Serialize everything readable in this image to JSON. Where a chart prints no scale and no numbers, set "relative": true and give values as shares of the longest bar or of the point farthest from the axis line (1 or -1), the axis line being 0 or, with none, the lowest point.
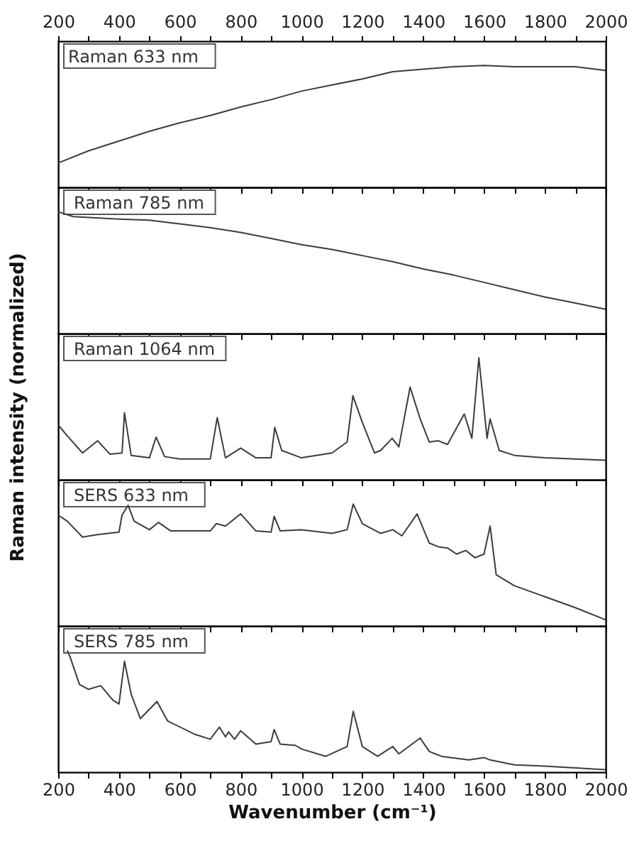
{
  "chart_data": [
    {
      "type": "line",
      "title": "Raman 633 nm",
      "relative": true,
      "xlim": [
        200,
        2000
      ],
      "x2lim": [
        200,
        2000
      ],
      "x2ticks": [
        200,
        {
          "value": 300,
          "label": null
        },
        400,
        {
          "value": 500,
          "label": null
        },
        600,
        {
          "value": 700,
          "label": null
        },
        800,
        {
          "value": 900,
          "label": null
        },
        1000,
        {
          "value": 1100,
          "label": null
        },
        1200,
        {
          "value": 1300,
          "label": null
        },
        1400,
        {
          "value": 1500,
          "label": null
        },
        1600,
        {
          "value": 1700,
          "label": null
        },
        1800,
        {
          "value": 1900,
          "label": null
        },
        2000
      ],
      "xticks": [
        {
          "value": 200,
          "label": null
        },
        {
          "value": 300,
          "label": null
        },
        {
          "value": 400,
          "label": null
        },
        {
          "value": 500,
          "label": null
        },
        {
          "value": 600,
          "label": null
        },
        {
          "value": 700,
          "label": null
        },
        {
          "value": 800,
          "label": null
        },
        {
          "value": 900,
          "label": null
        },
        {
          "value": 1000,
          "label": null
        },
        {
          "value": 1100,
          "label": null
        },
        {
          "value": 1200,
          "label": null
        },
        {
          "value": 1300,
          "label": null
        },
        {
          "value": 1400,
          "label": null
        },
        {
          "value": 1500,
          "label": null
        },
        {
          "value": 1600,
          "label": null
        },
        {
          "value": 1700,
          "label": null
        },
        {
          "value": 1800,
          "label": null
        },
        {
          "value": 1900,
          "label": null
        },
        {
          "value": 2000,
          "label": null
        }
      ],
      "tick_labels": false,
      "x": [
        200,
        300,
        400,
        500,
        600,
        700,
        800,
        900,
        1000,
        1100,
        1200,
        1300,
        1400,
        1500,
        1600,
        1700,
        1800,
        1900,
        2000
      ],
      "series": [
        {
          "color": "#3c3c3c",
          "values": [
            0.2,
            0.3,
            0.38,
            0.46,
            0.53,
            0.59,
            0.66,
            0.72,
            0.79,
            0.84,
            0.89,
            0.95,
            0.97,
            0.99,
            1.0,
            0.99,
            0.99,
            0.99,
            0.96
          ]
        }
      ]
    },
    {
      "type": "line",
      "title": "Raman 785 nm",
      "relative": true,
      "xlim": [
        200,
        2000
      ],
      "xticks": [
        {
          "value": 200,
          "label": null
        },
        {
          "value": 300,
          "label": null
        },
        {
          "value": 400,
          "label": null
        },
        {
          "value": 500,
          "label": null
        },
        {
          "value": 600,
          "label": null
        },
        {
          "value": 700,
          "label": null
        },
        {
          "value": 800,
          "label": null
        },
        {
          "value": 900,
          "label": null
        },
        {
          "value": 1000,
          "label": null
        },
        {
          "value": 1100,
          "label": null
        },
        {
          "value": 1200,
          "label": null
        },
        {
          "value": 1300,
          "label": null
        },
        {
          "value": 1400,
          "label": null
        },
        {
          "value": 1500,
          "label": null
        },
        {
          "value": 1600,
          "label": null
        },
        {
          "value": 1700,
          "label": null
        },
        {
          "value": 1800,
          "label": null
        },
        {
          "value": 1900,
          "label": null
        },
        {
          "value": 2000,
          "label": null
        }
      ],
      "tick_labels": false,
      "x": [
        200,
        250,
        400,
        500,
        600,
        700,
        800,
        900,
        1000,
        1100,
        1200,
        1300,
        1400,
        1500,
        1600,
        1700,
        1800,
        1900,
        2000
      ],
      "series": [
        {
          "color": "#3c3c3c",
          "values": [
            1.0,
            0.96,
            0.94,
            0.93,
            0.9,
            0.87,
            0.83,
            0.78,
            0.73,
            0.69,
            0.64,
            0.59,
            0.53,
            0.48,
            0.42,
            0.36,
            0.3,
            0.25,
            0.2
          ]
        }
      ]
    },
    {
      "type": "line",
      "title": "Raman 1064 nm",
      "ylabel": "Raman intensity (normalized)",
      "relative": true,
      "xlim": [
        200,
        2000
      ],
      "xticks": [
        {
          "value": 200,
          "label": null
        },
        {
          "value": 300,
          "label": null
        },
        {
          "value": 400,
          "label": null
        },
        {
          "value": 500,
          "label": null
        },
        {
          "value": 600,
          "label": null
        },
        {
          "value": 700,
          "label": null
        },
        {
          "value": 800,
          "label": null
        },
        {
          "value": 900,
          "label": null
        },
        {
          "value": 1000,
          "label": null
        },
        {
          "value": 1100,
          "label": null
        },
        {
          "value": 1200,
          "label": null
        },
        {
          "value": 1300,
          "label": null
        },
        {
          "value": 1400,
          "label": null
        },
        {
          "value": 1500,
          "label": null
        },
        {
          "value": 1600,
          "label": null
        },
        {
          "value": 1700,
          "label": null
        },
        {
          "value": 1800,
          "label": null
        },
        {
          "value": 1900,
          "label": null
        },
        {
          "value": 2000,
          "label": null
        }
      ],
      "tick_labels": false,
      "x": [
        200,
        230,
        280,
        330,
        370,
        410,
        418,
        440,
        500,
        522,
        550,
        600,
        700,
        723,
        750,
        800,
        850,
        900,
        912,
        935,
        1000,
        1100,
        1150,
        1169,
        1200,
        1240,
        1260,
        1298,
        1320,
        1357,
        1390,
        1420,
        1450,
        1480,
        1535,
        1560,
        1583,
        1610,
        1620,
        1650,
        1700,
        1800,
        2000
      ],
      "series": [
        {
          "color": "#3c3c3c",
          "values": [
            0.45,
            0.36,
            0.22,
            0.32,
            0.21,
            0.22,
            0.55,
            0.2,
            0.18,
            0.35,
            0.19,
            0.17,
            0.17,
            0.51,
            0.18,
            0.26,
            0.18,
            0.18,
            0.43,
            0.24,
            0.18,
            0.22,
            0.31,
            0.69,
            0.47,
            0.22,
            0.24,
            0.34,
            0.27,
            0.76,
            0.5,
            0.31,
            0.32,
            0.29,
            0.54,
            0.34,
            1.0,
            0.34,
            0.5,
            0.24,
            0.2,
            0.18,
            0.16
          ]
        }
      ]
    },
    {
      "type": "line",
      "title": "SERS 633 nm",
      "relative": true,
      "xlim": [
        200,
        2000
      ],
      "xticks": [
        {
          "value": 200,
          "label": null
        },
        {
          "value": 300,
          "label": null
        },
        {
          "value": 400,
          "label": null
        },
        {
          "value": 500,
          "label": null
        },
        {
          "value": 600,
          "label": null
        },
        {
          "value": 700,
          "label": null
        },
        {
          "value": 800,
          "label": null
        },
        {
          "value": 900,
          "label": null
        },
        {
          "value": 1000,
          "label": null
        },
        {
          "value": 1100,
          "label": null
        },
        {
          "value": 1200,
          "label": null
        },
        {
          "value": 1300,
          "label": null
        },
        {
          "value": 1400,
          "label": null
        },
        {
          "value": 1500,
          "label": null
        },
        {
          "value": 1600,
          "label": null
        },
        {
          "value": 1700,
          "label": null
        },
        {
          "value": 1800,
          "label": null
        },
        {
          "value": 1900,
          "label": null
        },
        {
          "value": 2000,
          "label": null
        }
      ],
      "tick_labels": false,
      "x": [
        200,
        230,
        280,
        330,
        400,
        410,
        430,
        450,
        500,
        530,
        570,
        700,
        720,
        750,
        800,
        850,
        900,
        910,
        930,
        1000,
        1100,
        1150,
        1170,
        1200,
        1260,
        1300,
        1330,
        1380,
        1420,
        1450,
        1480,
        1510,
        1540,
        1570,
        1600,
        1620,
        1640,
        1700,
        1800,
        1900,
        2000
      ],
      "series": [
        {
          "color": "#3c3c3c",
          "values": [
            0.91,
            0.86,
            0.73,
            0.75,
            0.77,
            0.91,
            0.99,
            0.86,
            0.79,
            0.85,
            0.78,
            0.78,
            0.84,
            0.82,
            0.92,
            0.78,
            0.77,
            0.9,
            0.78,
            0.79,
            0.76,
            0.79,
            1.0,
            0.84,
            0.76,
            0.79,
            0.74,
            0.92,
            0.68,
            0.65,
            0.64,
            0.59,
            0.62,
            0.56,
            0.59,
            0.82,
            0.42,
            0.33,
            0.24,
            0.15,
            0.05
          ]
        }
      ]
    },
    {
      "type": "line",
      "title": "SERS 785 nm",
      "xlabel": "Wavenumber (cm⁻¹)",
      "relative": true,
      "xlim": [
        200,
        2000
      ],
      "xticks": [
        200,
        {
          "value": 300,
          "label": null
        },
        400,
        {
          "value": 500,
          "label": null
        },
        600,
        {
          "value": 700,
          "label": null
        },
        800,
        {
          "value": 900,
          "label": null
        },
        1000,
        {
          "value": 1100,
          "label": null
        },
        1200,
        {
          "value": 1300,
          "label": null
        },
        1400,
        {
          "value": 1500,
          "label": null
        },
        1600,
        {
          "value": 1700,
          "label": null
        },
        1800,
        {
          "value": 1900,
          "label": null
        },
        2000
      ],
      "tick_labels": "x",
      "x": [
        230,
        240,
        270,
        300,
        340,
        380,
        400,
        418,
        440,
        470,
        525,
        560,
        650,
        700,
        730,
        750,
        760,
        780,
        800,
        850,
        900,
        910,
        930,
        980,
        1000,
        1080,
        1150,
        1170,
        1200,
        1250,
        1300,
        1320,
        1390,
        1420,
        1440,
        1460,
        1550,
        1600,
        1620,
        1700,
        1800,
        2000
      ],
      "series": [
        {
          "color": "#3c3c3c",
          "values": [
            1.0,
            0.94,
            0.72,
            0.68,
            0.71,
            0.59,
            0.56,
            0.91,
            0.64,
            0.44,
            0.58,
            0.42,
            0.31,
            0.27,
            0.37,
            0.29,
            0.33,
            0.27,
            0.34,
            0.23,
            0.25,
            0.35,
            0.23,
            0.22,
            0.19,
            0.13,
            0.21,
            0.5,
            0.21,
            0.13,
            0.21,
            0.15,
            0.28,
            0.17,
            0.15,
            0.13,
            0.1,
            0.12,
            0.1,
            0.06,
            0.05,
            0.02
          ]
        }
      ]
    }
  ]
}
